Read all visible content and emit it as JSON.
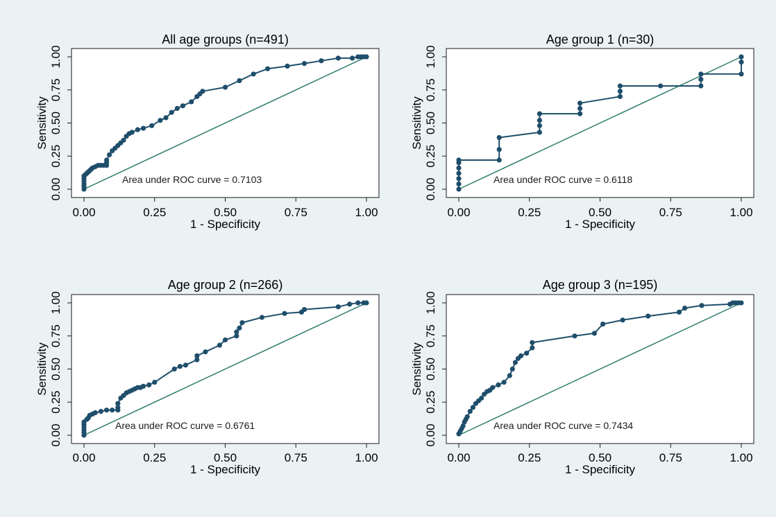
{
  "colors": {
    "background": "#eaf2f3",
    "plot_area": "#ffffff",
    "roc_curve": "#1f4e6b",
    "reference_line": "#2e7d6e"
  },
  "chart_data": [
    {
      "type": "line",
      "title": "All age groups (n=491)",
      "xlabel": "1 - Specificity",
      "ylabel": "Sensitivity",
      "xlim": [
        0,
        1
      ],
      "ylim": [
        0,
        1
      ],
      "xticks": [
        "0.00",
        "0.25",
        "0.50",
        "0.75",
        "1.00"
      ],
      "yticks": [
        "0.00",
        "0.25",
        "0.50",
        "0.75",
        "1.00"
      ],
      "annotation": "Area under ROC curve = 0.7103",
      "grid": false,
      "reference_line": true,
      "series": [
        {
          "x": [
            0.0,
            0.0,
            0.0,
            0.0,
            0.0,
            0.0,
            0.005,
            0.01,
            0.015,
            0.02,
            0.025,
            0.03,
            0.04,
            0.05,
            0.06,
            0.07,
            0.08,
            0.08,
            0.08,
            0.09,
            0.1,
            0.11,
            0.12,
            0.13,
            0.14,
            0.15,
            0.16,
            0.17,
            0.19,
            0.21,
            0.24,
            0.27,
            0.29,
            0.31,
            0.33,
            0.35,
            0.38,
            0.4,
            0.41,
            0.42,
            0.5,
            0.55,
            0.6,
            0.65,
            0.72,
            0.78,
            0.84,
            0.9,
            0.95,
            0.97,
            0.98,
            0.99,
            1.0
          ],
          "y": [
            0.0,
            0.02,
            0.04,
            0.06,
            0.08,
            0.1,
            0.11,
            0.12,
            0.13,
            0.14,
            0.15,
            0.16,
            0.17,
            0.18,
            0.18,
            0.18,
            0.18,
            0.2,
            0.22,
            0.26,
            0.29,
            0.31,
            0.33,
            0.35,
            0.37,
            0.4,
            0.42,
            0.43,
            0.45,
            0.46,
            0.48,
            0.52,
            0.54,
            0.58,
            0.61,
            0.63,
            0.66,
            0.7,
            0.72,
            0.74,
            0.77,
            0.82,
            0.87,
            0.91,
            0.93,
            0.95,
            0.97,
            0.99,
            0.99,
            1.0,
            1.0,
            1.0,
            1.0
          ]
        }
      ]
    },
    {
      "type": "line",
      "title": "Age group 1 (n=30)",
      "xlabel": "1 - Specificity",
      "ylabel": "Sensitivity",
      "xlim": [
        0,
        1
      ],
      "ylim": [
        0,
        1
      ],
      "xticks": [
        "0.00",
        "0.25",
        "0.50",
        "0.75",
        "1.00"
      ],
      "yticks": [
        "0.00",
        "0.25",
        "0.50",
        "0.75",
        "1.00"
      ],
      "annotation": "Area under ROC curve = 0.6118",
      "grid": false,
      "reference_line": true,
      "series": [
        {
          "x": [
            0.0,
            0.0,
            0.0,
            0.0,
            0.0,
            0.0,
            0.0,
            0.143,
            0.143,
            0.143,
            0.286,
            0.286,
            0.286,
            0.286,
            0.429,
            0.429,
            0.429,
            0.571,
            0.571,
            0.571,
            0.714,
            0.857,
            0.857,
            0.857,
            1.0,
            1.0,
            1.0
          ],
          "y": [
            0.0,
            0.04,
            0.08,
            0.12,
            0.16,
            0.2,
            0.22,
            0.22,
            0.3,
            0.39,
            0.43,
            0.48,
            0.52,
            0.57,
            0.57,
            0.61,
            0.65,
            0.7,
            0.74,
            0.78,
            0.78,
            0.78,
            0.83,
            0.87,
            0.87,
            0.96,
            1.0
          ]
        }
      ]
    },
    {
      "type": "line",
      "title": "Age group 2 (n=266)",
      "xlabel": "1 - Specificity",
      "ylabel": "Sensitivity",
      "xlim": [
        0,
        1
      ],
      "ylim": [
        0,
        1
      ],
      "xticks": [
        "0.00",
        "0.25",
        "0.50",
        "0.75",
        "1.00"
      ],
      "yticks": [
        "0.00",
        "0.25",
        "0.50",
        "0.75",
        "1.00"
      ],
      "annotation": "Area under ROC curve = 0.6761",
      "grid": false,
      "reference_line": true,
      "series": [
        {
          "x": [
            0.0,
            0.0,
            0.0,
            0.0,
            0.0,
            0.0,
            0.01,
            0.015,
            0.02,
            0.03,
            0.04,
            0.06,
            0.08,
            0.1,
            0.12,
            0.12,
            0.12,
            0.13,
            0.14,
            0.15,
            0.16,
            0.17,
            0.18,
            0.19,
            0.2,
            0.21,
            0.23,
            0.25,
            0.32,
            0.34,
            0.36,
            0.4,
            0.4,
            0.43,
            0.48,
            0.5,
            0.54,
            0.54,
            0.55,
            0.56,
            0.63,
            0.71,
            0.77,
            0.78,
            0.9,
            0.94,
            0.97,
            0.99,
            1.0
          ],
          "y": [
            0.0,
            0.02,
            0.04,
            0.06,
            0.08,
            0.1,
            0.12,
            0.13,
            0.15,
            0.16,
            0.17,
            0.18,
            0.19,
            0.19,
            0.19,
            0.21,
            0.24,
            0.28,
            0.3,
            0.32,
            0.33,
            0.34,
            0.35,
            0.36,
            0.36,
            0.37,
            0.38,
            0.4,
            0.5,
            0.52,
            0.53,
            0.57,
            0.6,
            0.63,
            0.68,
            0.72,
            0.75,
            0.78,
            0.81,
            0.85,
            0.89,
            0.92,
            0.93,
            0.95,
            0.97,
            0.99,
            1.0,
            1.0,
            1.0
          ]
        }
      ]
    },
    {
      "type": "line",
      "title": "Age group 3 (n=195)",
      "xlabel": "1 - Specificity",
      "ylabel": "Sensitivity",
      "xlim": [
        0,
        1
      ],
      "ylim": [
        0,
        1
      ],
      "xticks": [
        "0.00",
        "0.25",
        "0.50",
        "0.75",
        "1.00"
      ],
      "yticks": [
        "0.00",
        "0.25",
        "0.50",
        "0.75",
        "1.00"
      ],
      "annotation": "Area under ROC curve = 0.7434",
      "grid": false,
      "reference_line": true,
      "series": [
        {
          "x": [
            0.0,
            0.005,
            0.01,
            0.015,
            0.02,
            0.025,
            0.03,
            0.04,
            0.05,
            0.06,
            0.07,
            0.08,
            0.09,
            0.1,
            0.11,
            0.12,
            0.14,
            0.16,
            0.18,
            0.19,
            0.2,
            0.21,
            0.22,
            0.24,
            0.26,
            0.26,
            0.41,
            0.48,
            0.51,
            0.58,
            0.67,
            0.78,
            0.8,
            0.86,
            0.96,
            0.97,
            0.98,
            0.99,
            1.0
          ],
          "y": [
            0.01,
            0.03,
            0.05,
            0.07,
            0.1,
            0.12,
            0.14,
            0.18,
            0.21,
            0.24,
            0.26,
            0.28,
            0.31,
            0.33,
            0.34,
            0.36,
            0.38,
            0.4,
            0.45,
            0.5,
            0.55,
            0.58,
            0.6,
            0.62,
            0.66,
            0.7,
            0.75,
            0.77,
            0.84,
            0.87,
            0.9,
            0.93,
            0.96,
            0.98,
            0.99,
            1.0,
            1.0,
            1.0,
            1.0
          ]
        }
      ]
    }
  ]
}
